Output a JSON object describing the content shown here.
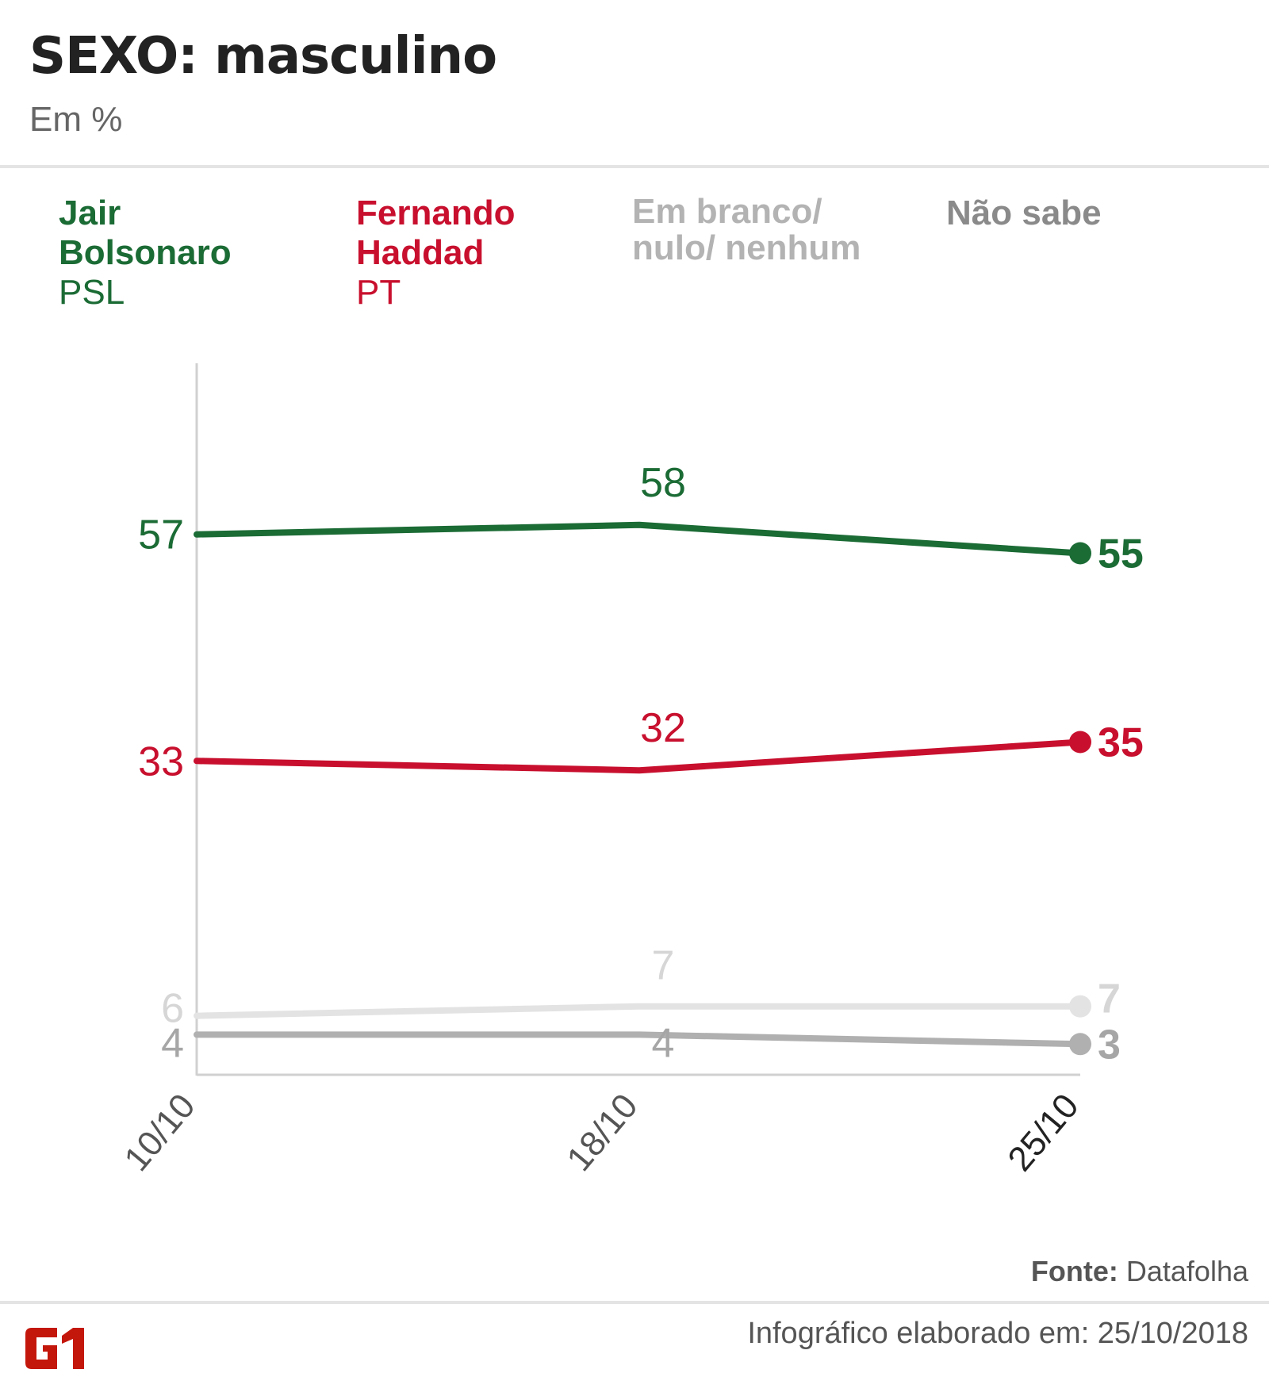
{
  "header": {
    "title": "SEXO: masculino",
    "subtitle": "Em %"
  },
  "legend": [
    {
      "name_line1": "Jair",
      "name_line2": "Bolsonaro",
      "party": "PSL",
      "color": "#1b6b35"
    },
    {
      "name_line1": "Fernando",
      "name_line2": "Haddad",
      "party": "PT",
      "color": "#c8102e"
    },
    {
      "name_line1": "Em branco/",
      "name_line2": "nulo/ nenhum",
      "party": "",
      "color": "#b3b3b3"
    },
    {
      "name_line1": "Não sabe",
      "name_line2": "",
      "party": "",
      "color": "#8a8a8a"
    }
  ],
  "chart_data": {
    "type": "line",
    "title": "SEXO: masculino",
    "subtitle": "Em %",
    "xlabel": "",
    "ylabel": "",
    "x": [
      "10/10",
      "18/10",
      "25/10"
    ],
    "ylim": [
      0,
      65
    ],
    "grid": false,
    "legend_position": "top",
    "series": [
      {
        "name": "Jair Bolsonaro (PSL)",
        "values": [
          57,
          58,
          55
        ],
        "color": "#1b6b35",
        "label_color": "#1b6b35"
      },
      {
        "name": "Fernando Haddad (PT)",
        "values": [
          33,
          32,
          35
        ],
        "color": "#c8102e",
        "label_color": "#c8102e"
      },
      {
        "name": "Em branco/ nulo/ nenhum",
        "values": [
          6,
          7,
          7
        ],
        "color": "#e3e3e3",
        "label_color": "#d6d6d6"
      },
      {
        "name": "Não sabe",
        "values": [
          4,
          4,
          3
        ],
        "color": "#b0b0b0",
        "label_color": "#a6a6a6"
      }
    ]
  },
  "footer": {
    "source_label": "Fonte:",
    "source_value": "Datafolha",
    "made_label": "Infográfico elaborado em: 25/10/2018",
    "logo_text": "G1",
    "logo_color": "#c4170c"
  }
}
